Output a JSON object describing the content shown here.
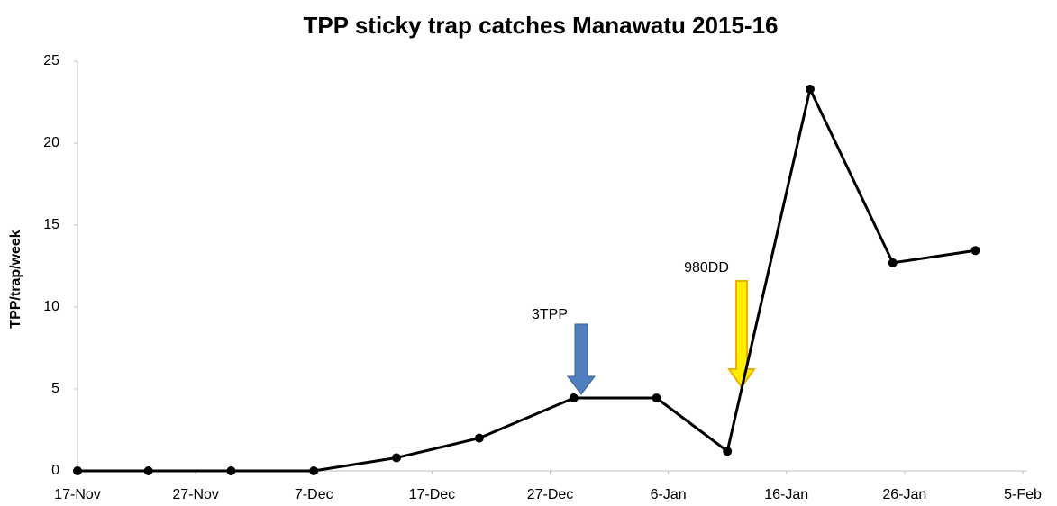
{
  "chart_data": {
    "type": "line",
    "title": "TPP sticky trap catches Manawatu 2015-16",
    "y_label": "TPP/trap/week",
    "x": [
      0,
      6,
      13,
      20,
      27,
      34,
      42,
      49,
      55,
      62,
      69,
      76
    ],
    "series": [
      {
        "name": "TPP",
        "color": "#000000",
        "values": [
          0,
          0,
          0,
          0,
          0.8,
          2.0,
          4.45,
          4.45,
          1.2,
          23.3,
          12.7,
          13.45
        ]
      }
    ],
    "xlim": [
      0,
      80
    ],
    "xticks": [
      {
        "value": 0,
        "label": "17-Nov"
      },
      {
        "value": 10,
        "label": "27-Nov"
      },
      {
        "value": 20,
        "label": "7-Dec"
      },
      {
        "value": 30,
        "label": "17-Dec"
      },
      {
        "value": 40,
        "label": "27-Dec"
      },
      {
        "value": 50,
        "label": "6-Jan"
      },
      {
        "value": 60,
        "label": "16-Jan"
      },
      {
        "value": 70,
        "label": "26-Jan"
      },
      {
        "value": 80,
        "label": "5-Feb"
      }
    ],
    "ylim": [
      0,
      25
    ],
    "yticks": [
      0,
      5,
      10,
      15,
      20,
      25
    ],
    "grid": false,
    "annotations": [
      "3TPP",
      "980DD"
    ]
  }
}
